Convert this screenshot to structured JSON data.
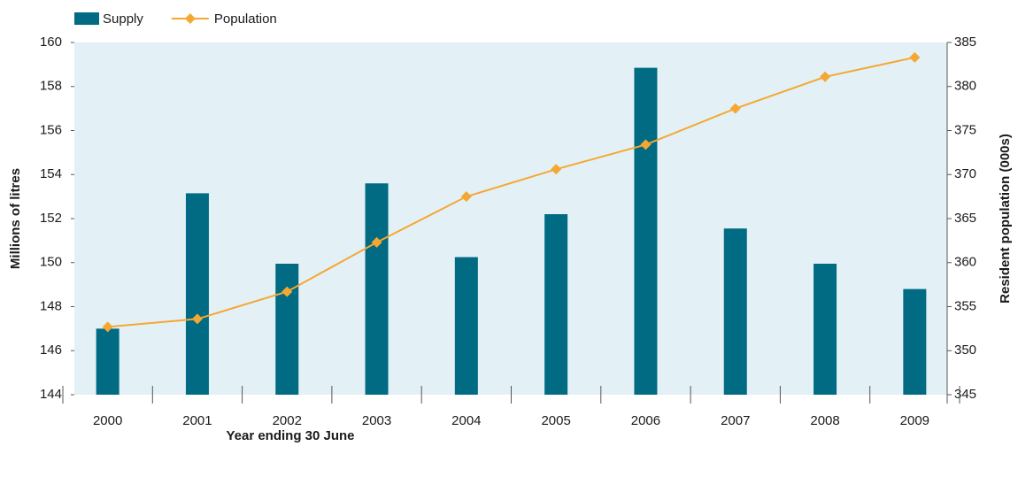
{
  "chart_data": {
    "type": "bar-line",
    "categories": [
      "2000",
      "2001",
      "2002",
      "2003",
      "2004",
      "2005",
      "2006",
      "2007",
      "2008",
      "2009"
    ],
    "x_label": "Year ending 30 June",
    "y_label": "Millions of litres",
    "y2_label": "Resident population (000s)",
    "series": [
      {
        "name": "Supply",
        "type": "bar",
        "color": "#006b82",
        "values": [
          147.0,
          153.15,
          149.95,
          153.6,
          150.25,
          152.2,
          158.85,
          151.55,
          149.95,
          148.8
        ]
      },
      {
        "name": "Population",
        "type": "line",
        "axis": "y2",
        "color": "#f5a733",
        "values": [
          352.7,
          353.6,
          356.7,
          362.3,
          367.5,
          370.6,
          373.4,
          377.5,
          381.1,
          383.3
        ]
      }
    ],
    "ylim": [
      144,
      160
    ],
    "yticks": [
      144,
      146,
      148,
      150,
      152,
      154,
      156,
      158,
      160
    ],
    "y2lim": [
      345,
      385
    ],
    "y2ticks": [
      345,
      350,
      355,
      360,
      365,
      370,
      375,
      380,
      385
    ],
    "legend": "top-left"
  }
}
